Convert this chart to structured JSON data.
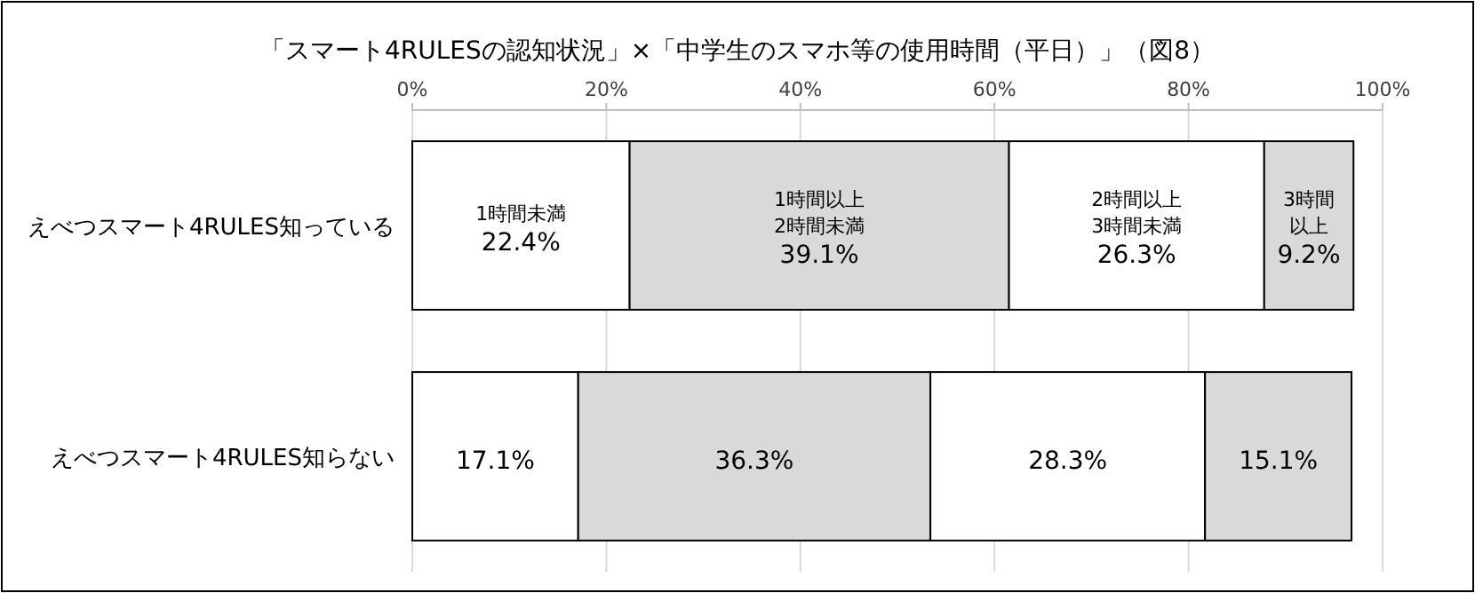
{
  "chart_data": {
    "type": "bar",
    "orientation": "horizontal",
    "stacked": true,
    "title": "「スマート4RULESの認知状況」×「中学生のスマホ等の使用時間（平日）」（図8）",
    "categories": [
      "えべつスマート4RULES知っている",
      "えべつスマート4RULES知らない"
    ],
    "series": [
      {
        "name": "1時間未満",
        "color": "#ffffff",
        "values": [
          22.4,
          17.1
        ],
        "value_labels": [
          "22.4%",
          "17.1%"
        ]
      },
      {
        "name": "1時間以上2時間未満",
        "color": "#d9d9d9",
        "values": [
          39.1,
          36.3
        ],
        "value_labels": [
          "39.1%",
          "36.3%"
        ]
      },
      {
        "name": "2時間以上3時間未満",
        "color": "#ffffff",
        "values": [
          26.3,
          28.3
        ],
        "value_labels": [
          "26.3%",
          "28.3%"
        ]
      },
      {
        "name": "3時間以上",
        "color": "#d9d9d9",
        "values": [
          9.2,
          15.1
        ],
        "value_labels": [
          "9.2%",
          "15.1%"
        ]
      }
    ],
    "xlim": [
      0,
      100
    ],
    "xticks": [
      {
        "value": 0,
        "label": "0%"
      },
      {
        "value": 20,
        "label": "20%"
      },
      {
        "value": 40,
        "label": "40%"
      },
      {
        "value": 60,
        "label": "60%"
      },
      {
        "value": 80,
        "label": "80%"
      },
      {
        "value": 100,
        "label": "100%"
      }
    ],
    "grid": "x",
    "legend": false
  }
}
